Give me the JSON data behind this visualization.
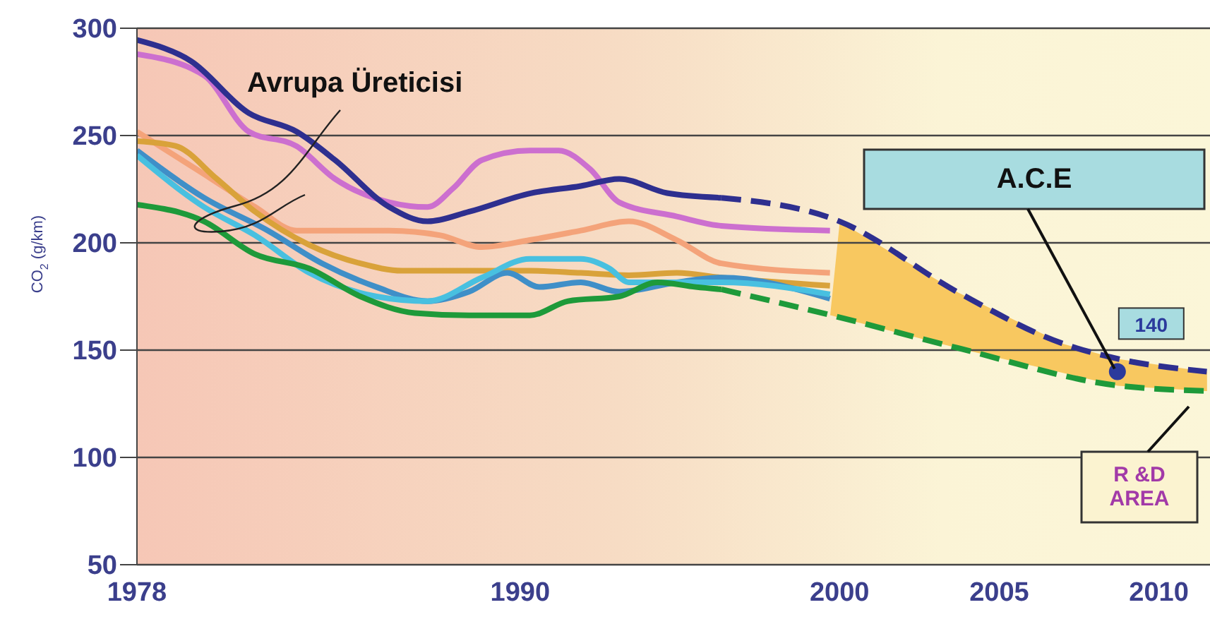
{
  "chart_data": {
    "type": "line",
    "ylabel": "CO$_{2}$ (g/km)",
    "xlim": [
      1978,
      2011.6
    ],
    "xticks": [
      1978,
      1990,
      2000,
      2005,
      2010
    ],
    "ylim": [
      50,
      300
    ],
    "yticks": [
      50,
      100,
      150,
      200,
      250,
      300
    ],
    "grid": "y",
    "marker": "none",
    "annotations": [
      "Avrupa Üreticisi",
      {
        "text": "A.C.E",
        "x": 2008.7,
        "y": 140
      },
      "R &D AREA"
    ],
    "series": [
      {
        "color": "#cc6fcf",
        "x": [
          1978,
          1980.1,
          1981.5,
          1983,
          1984.2,
          1985.9,
          1987.1,
          1987.9,
          1988.8,
          1990.3,
          1991.2,
          1992.2,
          1993.1,
          1994.9,
          1996.3,
          1999.7
        ],
        "values": [
          287.9,
          278,
          251.8,
          245,
          229.8,
          218.9,
          216.7,
          225.4,
          238.6,
          243,
          243,
          234.2,
          218.9,
          212.3,
          207.9,
          205.7
        ]
      },
      {
        "color": "#f4a37a",
        "x": [
          1978,
          1980.1,
          1981.7,
          1983,
          1985.9,
          1987.5,
          1988.8,
          1990.3,
          1991.9,
          1993.4,
          1994.9,
          1996.3,
          1999.7
        ],
        "values": [
          251.8,
          232,
          216.7,
          205.7,
          205.7,
          203.5,
          198,
          201.3,
          205.7,
          210,
          201.3,
          190.4,
          186
        ]
      },
      {
        "color": "#d9a23a",
        "x": [
          1978,
          1979.2,
          1980.5,
          1981.7,
          1983.4,
          1985,
          1986.3,
          1988.4,
          1990.3,
          1991.9,
          1993.4,
          1994.9,
          1996.3,
          1999.7
        ],
        "values": [
          247.4,
          245.2,
          229.8,
          214.5,
          199,
          190.4,
          187,
          187,
          187,
          186,
          184.9,
          186,
          183.8,
          180
        ]
      },
      {
        "color": "#3f8fc8",
        "x": [
          1978,
          1980.1,
          1982.1,
          1983.8,
          1985.5,
          1987.1,
          1988.4,
          1989.6,
          1990.6,
          1991.9,
          1993.1,
          1994.9,
          1996.3,
          1999.7
        ],
        "values": [
          243,
          221,
          205.7,
          190.4,
          179.4,
          172.8,
          177.2,
          186,
          179.4,
          181.6,
          177.2,
          181.6,
          183.8,
          174
        ]
      },
      {
        "color": "#48c0e0",
        "x": [
          1978,
          1980.1,
          1981.7,
          1983.4,
          1985.5,
          1987.1,
          1988.8,
          1990.3,
          1991.9,
          1992.8,
          1993.4,
          1994.9,
          1996.3,
          1999.7
        ],
        "values": [
          240.8,
          216.7,
          203.5,
          186,
          175,
          172.8,
          183.8,
          192.5,
          192.5,
          188,
          181.6,
          181.6,
          181.6,
          176
        ]
      },
      {
        "color": "#2e2f8f",
        "x": [
          1978,
          1979.7,
          1981.5,
          1983,
          1984.2,
          1985.9,
          1987.1,
          1988.4,
          1990.3,
          1991.9,
          1993.1,
          1994.6,
          1996.3
        ],
        "values": [
          294.5,
          284.6,
          260.5,
          251.8,
          238.6,
          216.7,
          210,
          214.5,
          223,
          226.5,
          229.8,
          223.2,
          221
        ]
      },
      {
        "color": "#2e2f8f",
        "line_style": "dashed",
        "x": [
          1996.3,
          2000,
          2003.7,
          2007,
          2008.7,
          2011.5
        ],
        "values": [
          221,
          210,
          177,
          153,
          146,
          140
        ]
      },
      {
        "color": "#1e9a3a",
        "x": [
          1978,
          1980.1,
          1981.7,
          1983.4,
          1985,
          1986.7,
          1988.4,
          1990.3,
          1991.5,
          1993.1,
          1994.3,
          1995.5,
          1996.3
        ],
        "values": [
          217.8,
          210,
          194.7,
          188,
          175,
          167.3,
          166.2,
          166.2,
          172.8,
          175,
          181.6,
          179.4,
          178.3
        ]
      },
      {
        "color": "#1e9a3a",
        "line_style": "dashed",
        "x": [
          1996.3,
          1999.7,
          2003.7,
          2008.7,
          2011.5
        ],
        "values": [
          178.3,
          166.4,
          151,
          133.5,
          131
        ]
      },
      {
        "type": "scatter",
        "marker": "circle",
        "color": "#2b3a9c",
        "x": [
          2008.7
        ],
        "values": [
          140
        ],
        "value_labels": [
          "140"
        ]
      }
    ]
  }
}
